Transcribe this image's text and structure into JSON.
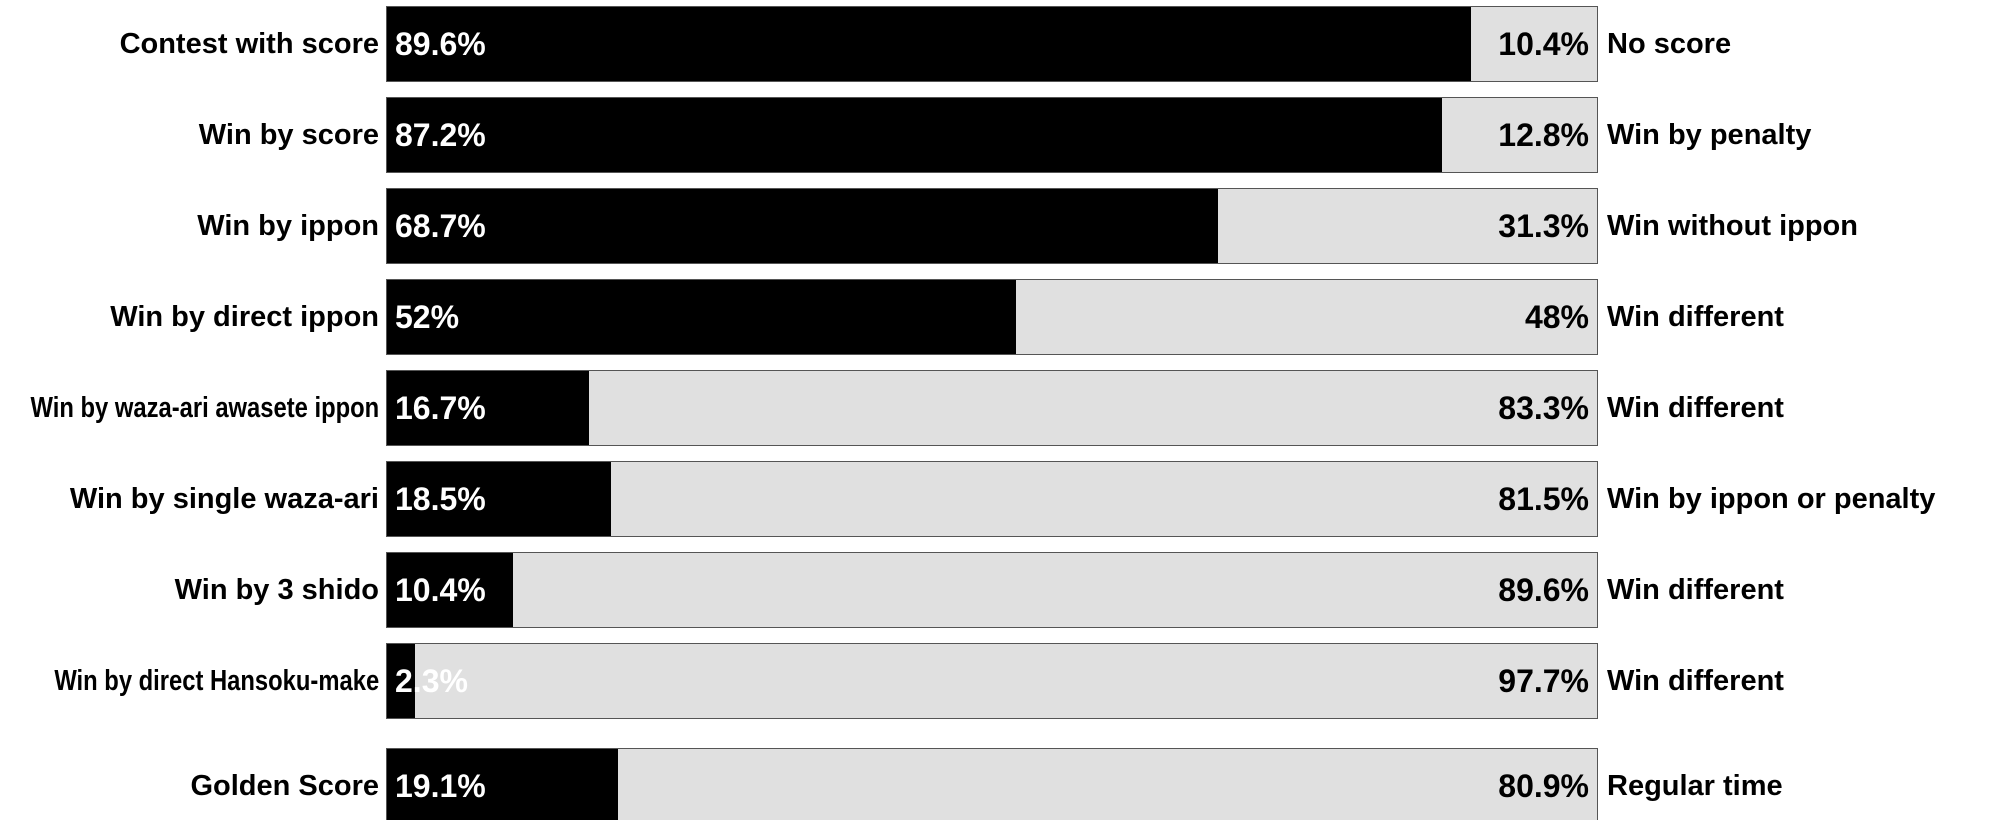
{
  "chart_data": {
    "type": "bar",
    "orientation": "horizontal",
    "stacked": true,
    "percent_scale": [
      0,
      100
    ],
    "rows": [
      {
        "left_label": "Contest with score",
        "left_value": 89.6,
        "left_text": "89.6%",
        "right_value": 10.4,
        "right_text": "10.4%",
        "right_label": "No score"
      },
      {
        "left_label": "Win by score",
        "left_value": 87.2,
        "left_text": "87.2%",
        "right_value": 12.8,
        "right_text": "12.8%",
        "right_label": "Win by penalty"
      },
      {
        "left_label": "Win by ippon",
        "left_value": 68.7,
        "left_text": "68.7%",
        "right_value": 31.3,
        "right_text": "31.3%",
        "right_label": "Win without ippon"
      },
      {
        "left_label": "Win by direct ippon",
        "left_value": 52,
        "left_text": "52%",
        "right_value": 48,
        "right_text": "48%",
        "right_label": "Win different"
      },
      {
        "left_label": "Win by waza-ari awasete ippon",
        "left_value": 16.7,
        "left_text": "16.7%",
        "right_value": 83.3,
        "right_text": "83.3%",
        "right_label": "Win different"
      },
      {
        "left_label": "Win by single waza-ari",
        "left_value": 18.5,
        "left_text": "18.5%",
        "right_value": 81.5,
        "right_text": "81.5%",
        "right_label": "Win by ippon or penalty"
      },
      {
        "left_label": "Win by 3 shido",
        "left_value": 10.4,
        "left_text": "10.4%",
        "right_value": 89.6,
        "right_text": "89.6%",
        "right_label": "Win different"
      },
      {
        "left_label": "Win by direct Hansoku-make",
        "left_value": 2.3,
        "left_text": "2.3%",
        "right_value": 97.7,
        "right_text": "97.7%",
        "right_label": "Win different"
      },
      {
        "left_label": "Golden Score",
        "left_value": 19.1,
        "left_text": "19.1%",
        "right_value": 80.9,
        "right_text": "80.9%",
        "right_label": "Regular time"
      }
    ],
    "colors": {
      "left_fill": "#000000",
      "right_fill": "#e0e0e0",
      "left_pct_text": "#ffffff",
      "right_pct_text": "#000000"
    },
    "title": "",
    "xlabel": "",
    "ylabel": "",
    "grid": false,
    "legend": "none"
  }
}
